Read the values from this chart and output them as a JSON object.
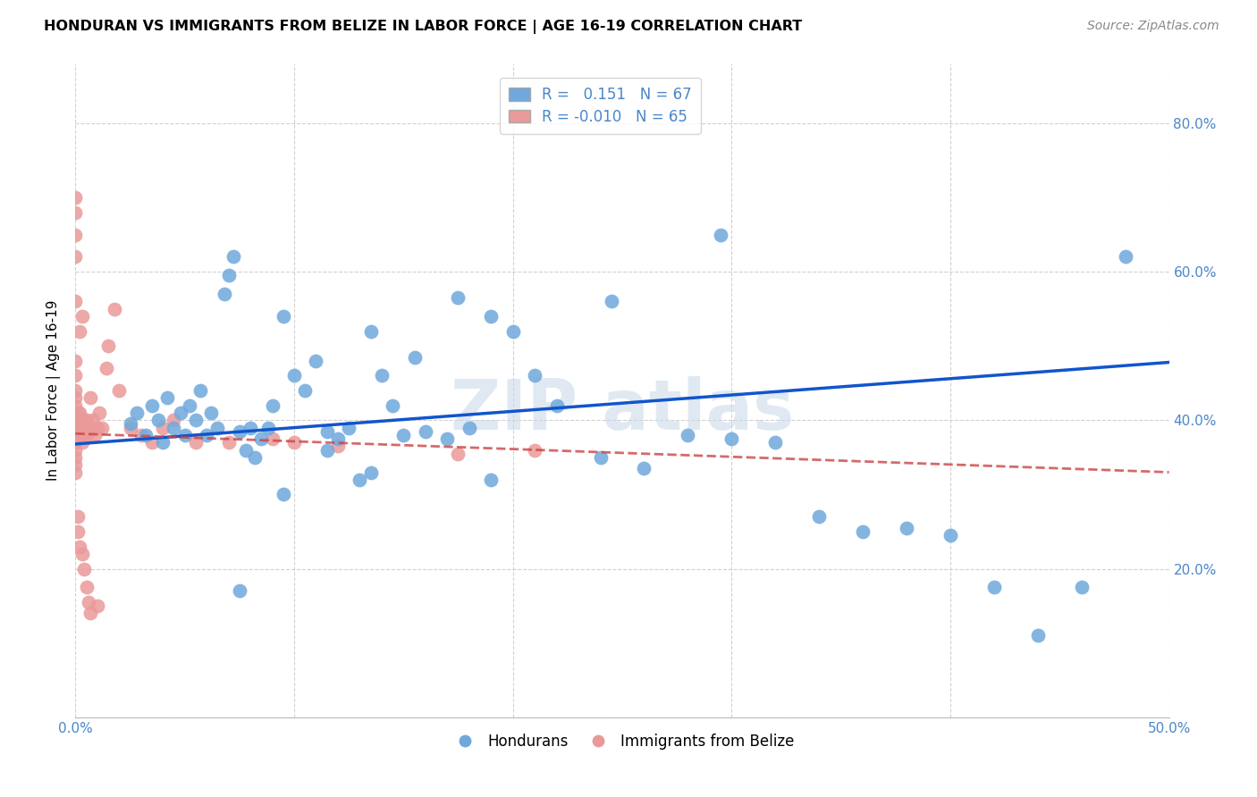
{
  "title": "HONDURAN VS IMMIGRANTS FROM BELIZE IN LABOR FORCE | AGE 16-19 CORRELATION CHART",
  "source": "Source: ZipAtlas.com",
  "ylabel": "In Labor Force | Age 16-19",
  "xlim": [
    0.0,
    0.5
  ],
  "ylim": [
    0.0,
    0.88
  ],
  "xticks": [
    0.0,
    0.1,
    0.2,
    0.3,
    0.4,
    0.5
  ],
  "xticklabels": [
    "0.0%",
    "",
    "",
    "",
    "",
    "50.0%"
  ],
  "yticks": [
    0.0,
    0.2,
    0.4,
    0.6,
    0.8
  ],
  "yticklabels_right": [
    "",
    "20.0%",
    "40.0%",
    "60.0%",
    "80.0%"
  ],
  "blue_color": "#6fa8dc",
  "pink_color": "#ea9999",
  "blue_line_color": "#1155cc",
  "pink_line_color": "#cc4444",
  "blue_line_x": [
    0.0,
    0.5
  ],
  "blue_line_y": [
    0.368,
    0.478
  ],
  "pink_line_x": [
    0.0,
    0.5
  ],
  "pink_line_y": [
    0.382,
    0.33
  ],
  "blue_x": [
    0.025,
    0.028,
    0.032,
    0.035,
    0.038,
    0.04,
    0.042,
    0.045,
    0.048,
    0.05,
    0.052,
    0.055,
    0.057,
    0.06,
    0.062,
    0.065,
    0.068,
    0.07,
    0.072,
    0.075,
    0.078,
    0.08,
    0.082,
    0.085,
    0.088,
    0.09,
    0.095,
    0.1,
    0.105,
    0.11,
    0.115,
    0.12,
    0.125,
    0.13,
    0.135,
    0.14,
    0.145,
    0.15,
    0.16,
    0.17,
    0.18,
    0.19,
    0.2,
    0.21,
    0.22,
    0.24,
    0.26,
    0.28,
    0.3,
    0.32,
    0.34,
    0.36,
    0.38,
    0.4,
    0.42,
    0.44,
    0.46,
    0.48,
    0.295,
    0.245,
    0.19,
    0.175,
    0.155,
    0.135,
    0.115,
    0.095,
    0.075
  ],
  "blue_y": [
    0.395,
    0.41,
    0.38,
    0.42,
    0.4,
    0.37,
    0.43,
    0.39,
    0.41,
    0.38,
    0.42,
    0.4,
    0.44,
    0.38,
    0.41,
    0.39,
    0.57,
    0.595,
    0.62,
    0.385,
    0.36,
    0.39,
    0.35,
    0.375,
    0.39,
    0.42,
    0.54,
    0.46,
    0.44,
    0.48,
    0.385,
    0.375,
    0.39,
    0.32,
    0.52,
    0.46,
    0.42,
    0.38,
    0.385,
    0.375,
    0.39,
    0.32,
    0.52,
    0.46,
    0.42,
    0.35,
    0.335,
    0.38,
    0.375,
    0.37,
    0.27,
    0.25,
    0.255,
    0.245,
    0.175,
    0.11,
    0.175,
    0.62,
    0.65,
    0.56,
    0.54,
    0.565,
    0.485,
    0.33,
    0.36,
    0.3,
    0.17
  ],
  "pink_x": [
    0.0,
    0.0,
    0.0,
    0.0,
    0.0,
    0.0,
    0.0,
    0.0,
    0.001,
    0.001,
    0.001,
    0.002,
    0.002,
    0.002,
    0.003,
    0.003,
    0.003,
    0.004,
    0.004,
    0.005,
    0.005,
    0.006,
    0.007,
    0.008,
    0.009,
    0.01,
    0.011,
    0.012,
    0.014,
    0.015,
    0.018,
    0.02,
    0.025,
    0.03,
    0.035,
    0.04,
    0.045,
    0.055,
    0.07,
    0.09,
    0.1,
    0.12,
    0.175,
    0.21,
    0.0,
    0.0,
    0.0,
    0.0,
    0.0,
    0.002,
    0.003,
    0.0,
    0.0,
    0.0,
    0.0,
    0.0,
    0.001,
    0.001,
    0.002,
    0.003,
    0.004,
    0.005,
    0.006,
    0.007,
    0.01
  ],
  "pink_y": [
    0.4,
    0.39,
    0.38,
    0.37,
    0.36,
    0.35,
    0.34,
    0.33,
    0.41,
    0.4,
    0.39,
    0.41,
    0.39,
    0.38,
    0.4,
    0.39,
    0.37,
    0.39,
    0.38,
    0.4,
    0.38,
    0.39,
    0.43,
    0.4,
    0.38,
    0.39,
    0.41,
    0.39,
    0.47,
    0.5,
    0.55,
    0.44,
    0.39,
    0.38,
    0.37,
    0.39,
    0.4,
    0.37,
    0.37,
    0.375,
    0.37,
    0.365,
    0.355,
    0.36,
    0.7,
    0.68,
    0.65,
    0.62,
    0.56,
    0.52,
    0.54,
    0.48,
    0.46,
    0.44,
    0.43,
    0.42,
    0.27,
    0.25,
    0.23,
    0.22,
    0.2,
    0.175,
    0.155,
    0.14,
    0.15
  ]
}
